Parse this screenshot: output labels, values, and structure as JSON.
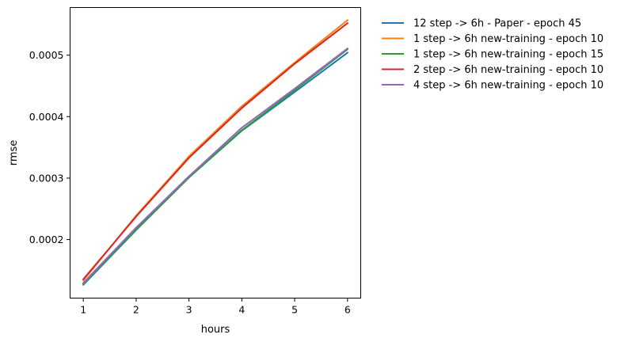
{
  "chart_data": {
    "type": "line",
    "title": "",
    "xlabel": "hours",
    "ylabel": "rmse",
    "x": [
      1,
      2,
      3,
      4,
      5,
      6
    ],
    "xlim": [
      0.75,
      6.25
    ],
    "ylim": [
      0.0001048,
      0.0005775
    ],
    "xticks": [
      1,
      2,
      3,
      4,
      5,
      6
    ],
    "xtick_labels": [
      "1",
      "2",
      "3",
      "4",
      "5",
      "6"
    ],
    "yticks": [
      0.0002,
      0.0003,
      0.0004,
      0.0005
    ],
    "ytick_labels": [
      "0.0002",
      "0.0003",
      "0.0004",
      "0.0005"
    ],
    "grid": false,
    "legend_position": "outside-top-right",
    "series": [
      {
        "name": "12 step -> 6h - Paper - epoch 45",
        "color": "#1f77b4",
        "values": [
          0.0001265,
          0.0002155,
          0.000301,
          0.000377,
          0.00044,
          0.000504
        ]
      },
      {
        "name": "1 step -> 6h new-training - epoch 10",
        "color": "#ff7f0e",
        "values": [
          0.0001335,
          0.000239,
          0.0003355,
          0.000417,
          0.000488,
          0.000557
        ]
      },
      {
        "name": "1 step -> 6h new-training - epoch 15",
        "color": "#2ca02c",
        "values": [
          0.000128,
          0.0002165,
          0.000301,
          0.000378,
          0.000443,
          0.0005095
        ]
      },
      {
        "name": "2 step -> 6h new-training - epoch 10",
        "color": "#d62728",
        "values": [
          0.0001355,
          0.0002375,
          0.000333,
          0.000414,
          0.000486,
          0.000552
        ]
      },
      {
        "name": "4 step -> 6h new-training - epoch 10",
        "color": "#9467bd",
        "values": [
          0.0001295,
          0.0002195,
          0.000303,
          0.000382,
          0.0004455,
          0.000511
        ]
      }
    ]
  }
}
